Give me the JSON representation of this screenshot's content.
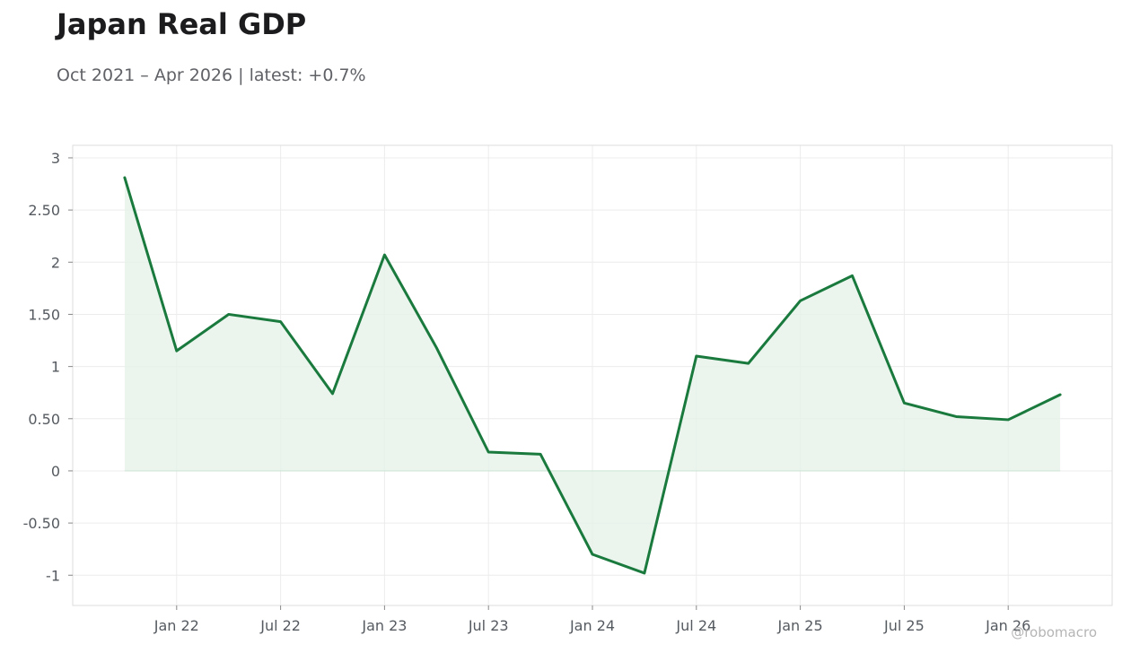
{
  "header": {
    "title": "Japan Real GDP",
    "subtitle": "Oct 2021 – Apr 2026 | latest: +0.7%"
  },
  "watermark": "@robomacro",
  "colors": {
    "line": "#1a7a3e",
    "fill": "#e6f2ea",
    "grid": "#ececec",
    "frame": "#dddddd",
    "tick_text": "#555a60"
  },
  "chart_data": {
    "type": "area",
    "title": "Japan Real GDP",
    "subtitle": "Oct 2021 – Apr 2026 | latest: +0.7%",
    "xlabel": "",
    "ylabel": "",
    "x": [
      "2021-10",
      "2022-01",
      "2022-04",
      "2022-07",
      "2022-10",
      "2023-01",
      "2023-04",
      "2023-07",
      "2023-10",
      "2024-01",
      "2024-04",
      "2024-07",
      "2024-10",
      "2025-01",
      "2025-04",
      "2025-07",
      "2025-10",
      "2026-01",
      "2026-04"
    ],
    "values": [
      2.81,
      1.15,
      1.5,
      1.43,
      0.74,
      2.07,
      1.18,
      0.18,
      0.16,
      -0.8,
      -0.98,
      1.1,
      1.03,
      1.63,
      1.87,
      0.65,
      0.52,
      0.49,
      0.73
    ],
    "x_ticks": [
      {
        "date": "2022-01",
        "label": "Jan 22"
      },
      {
        "date": "2022-07",
        "label": "Jul 22"
      },
      {
        "date": "2023-01",
        "label": "Jan 23"
      },
      {
        "date": "2023-07",
        "label": "Jul 23"
      },
      {
        "date": "2024-01",
        "label": "Jan 24"
      },
      {
        "date": "2024-07",
        "label": "Jul 24"
      },
      {
        "date": "2025-01",
        "label": "Jan 25"
      },
      {
        "date": "2025-07",
        "label": "Jul 25"
      },
      {
        "date": "2026-01",
        "label": "Jan 26"
      }
    ],
    "y_ticks": [
      {
        "value": 3,
        "label": "3"
      },
      {
        "value": 2.5,
        "label": "2.50"
      },
      {
        "value": 2,
        "label": "2"
      },
      {
        "value": 1.5,
        "label": "1.50"
      },
      {
        "value": 1,
        "label": "1"
      },
      {
        "value": 0.5,
        "label": "0.50"
      },
      {
        "value": 0,
        "label": "0"
      },
      {
        "value": -0.5,
        "label": "-0.50"
      },
      {
        "value": -1,
        "label": "-1"
      }
    ],
    "ylim": [
      -1.29,
      3.12
    ],
    "xlim": [
      "2021-07",
      "2026-07"
    ],
    "grid": true,
    "legend": "none"
  }
}
